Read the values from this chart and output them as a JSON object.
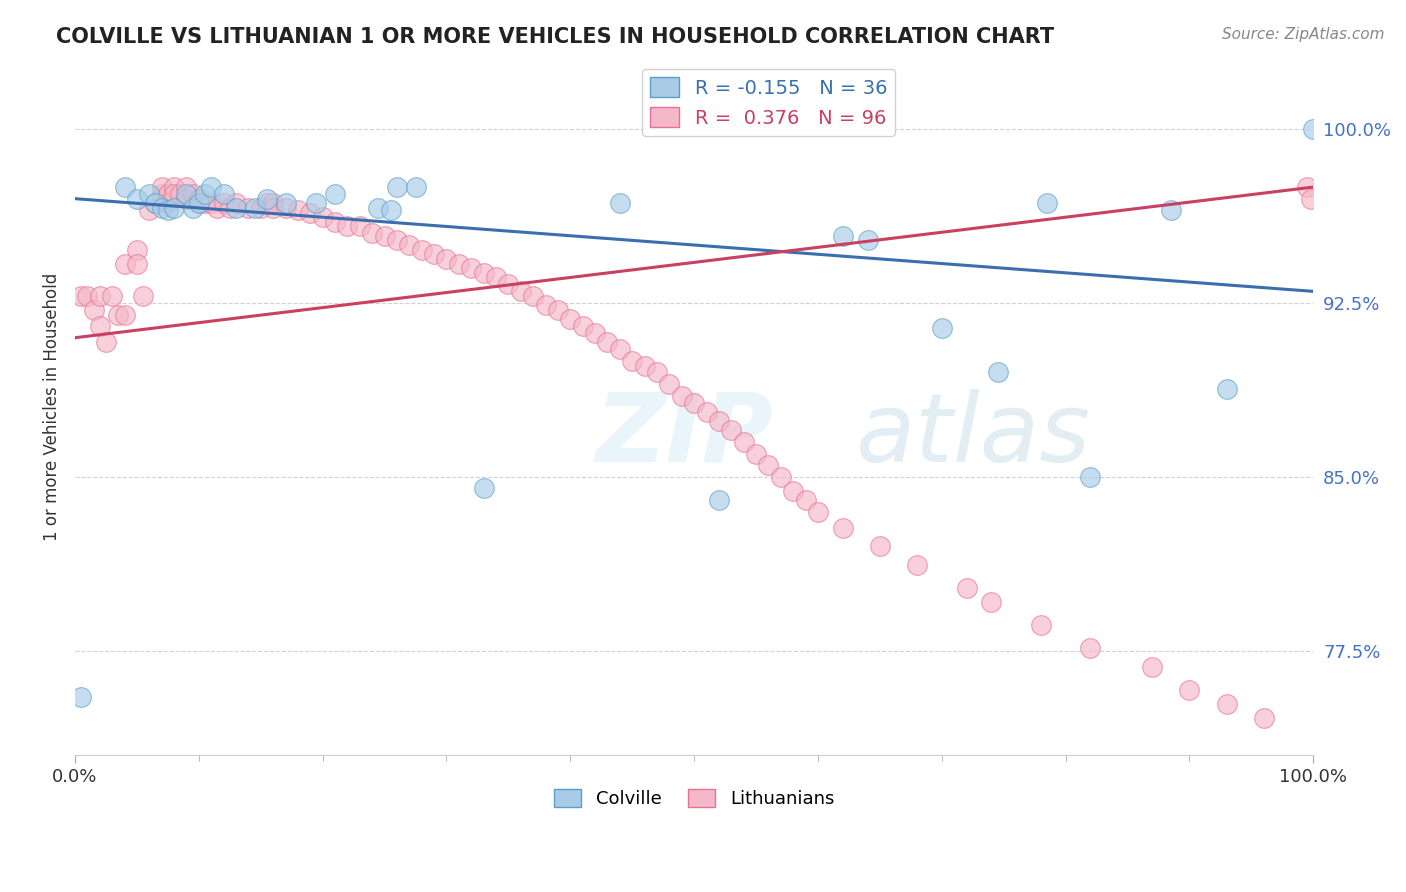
{
  "title": "COLVILLE VS LITHUANIAN 1 OR MORE VEHICLES IN HOUSEHOLD CORRELATION CHART",
  "source_text": "Source: ZipAtlas.com",
  "ylabel": "1 or more Vehicles in Household",
  "watermark_zip": "ZIP",
  "watermark_atlas": "atlas",
  "xlim": [
    0.0,
    1.0
  ],
  "ylim": [
    0.73,
    1.03
  ],
  "yticks": [
    0.775,
    0.85,
    0.925,
    1.0
  ],
  "ytick_labels": [
    "77.5%",
    "85.0%",
    "92.5%",
    "100.0%"
  ],
  "xticks": [
    0.0,
    1.0
  ],
  "xtick_labels": [
    "0.0%",
    "100.0%"
  ],
  "colville_color": "#a8cce8",
  "lithuanian_color": "#f4b8c8",
  "colville_edge": "#5b9ec9",
  "lithuanian_edge": "#e87090",
  "colville_R": -0.155,
  "colville_N": 36,
  "lithuanian_R": 0.376,
  "lithuanian_N": 96,
  "colville_line_color": "#3a6faf",
  "lithuanian_line_color": "#c94060",
  "colville_x": [
    0.005,
    0.04,
    0.05,
    0.06,
    0.065,
    0.07,
    0.075,
    0.08,
    0.09,
    0.095,
    0.1,
    0.105,
    0.11,
    0.12,
    0.13,
    0.145,
    0.155,
    0.17,
    0.195,
    0.21,
    0.245,
    0.255,
    0.26,
    0.275,
    0.33,
    0.44,
    0.52,
    0.62,
    0.64,
    0.7,
    0.745,
    0.785,
    0.82,
    0.885,
    0.93,
    1.0
  ],
  "colville_y": [
    0.755,
    0.975,
    0.97,
    0.972,
    0.968,
    0.966,
    0.965,
    0.966,
    0.972,
    0.966,
    0.968,
    0.972,
    0.975,
    0.972,
    0.966,
    0.966,
    0.97,
    0.968,
    0.968,
    0.972,
    0.966,
    0.965,
    0.975,
    0.975,
    0.845,
    0.968,
    0.84,
    0.954,
    0.952,
    0.914,
    0.895,
    0.968,
    0.85,
    0.965,
    0.888,
    1.0
  ],
  "lithuanian_x": [
    0.005,
    0.01,
    0.015,
    0.02,
    0.02,
    0.025,
    0.03,
    0.035,
    0.04,
    0.04,
    0.05,
    0.05,
    0.055,
    0.06,
    0.065,
    0.07,
    0.07,
    0.07,
    0.075,
    0.075,
    0.08,
    0.08,
    0.085,
    0.09,
    0.09,
    0.095,
    0.1,
    0.1,
    0.105,
    0.11,
    0.115,
    0.12,
    0.125,
    0.13,
    0.14,
    0.15,
    0.155,
    0.16,
    0.16,
    0.17,
    0.18,
    0.19,
    0.2,
    0.21,
    0.22,
    0.23,
    0.24,
    0.25,
    0.26,
    0.27,
    0.28,
    0.29,
    0.3,
    0.31,
    0.32,
    0.33,
    0.34,
    0.35,
    0.36,
    0.37,
    0.38,
    0.39,
    0.4,
    0.41,
    0.42,
    0.43,
    0.44,
    0.45,
    0.46,
    0.47,
    0.48,
    0.49,
    0.5,
    0.51,
    0.52,
    0.53,
    0.54,
    0.55,
    0.56,
    0.57,
    0.58,
    0.59,
    0.6,
    0.62,
    0.65,
    0.68,
    0.72,
    0.74,
    0.78,
    0.82,
    0.87,
    0.9,
    0.93,
    0.96,
    0.995,
    0.998
  ],
  "lithuanian_y": [
    0.928,
    0.928,
    0.922,
    0.928,
    0.915,
    0.908,
    0.928,
    0.92,
    0.942,
    0.92,
    0.948,
    0.942,
    0.928,
    0.965,
    0.968,
    0.972,
    0.97,
    0.975,
    0.972,
    0.968,
    0.975,
    0.972,
    0.972,
    0.975,
    0.97,
    0.972,
    0.97,
    0.968,
    0.968,
    0.968,
    0.966,
    0.968,
    0.966,
    0.968,
    0.966,
    0.966,
    0.968,
    0.968,
    0.966,
    0.966,
    0.965,
    0.964,
    0.962,
    0.96,
    0.958,
    0.958,
    0.955,
    0.954,
    0.952,
    0.95,
    0.948,
    0.946,
    0.944,
    0.942,
    0.94,
    0.938,
    0.936,
    0.933,
    0.93,
    0.928,
    0.924,
    0.922,
    0.918,
    0.915,
    0.912,
    0.908,
    0.905,
    0.9,
    0.898,
    0.895,
    0.89,
    0.885,
    0.882,
    0.878,
    0.874,
    0.87,
    0.865,
    0.86,
    0.855,
    0.85,
    0.844,
    0.84,
    0.835,
    0.828,
    0.82,
    0.812,
    0.802,
    0.796,
    0.786,
    0.776,
    0.768,
    0.758,
    0.752,
    0.746,
    0.975,
    0.97
  ]
}
